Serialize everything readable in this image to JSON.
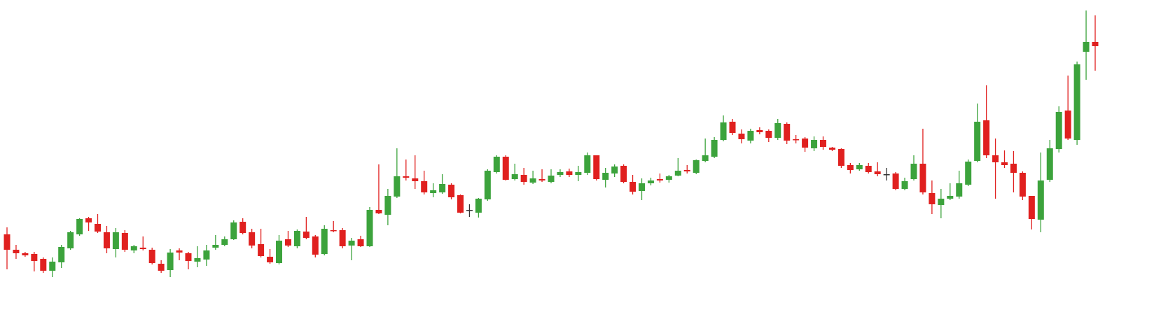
{
  "chart_data": {
    "type": "candlestick",
    "ylim": [
      0,
      476
    ],
    "up_color": "#3ca33c",
    "down_color": "#e0201f",
    "doji_color": "#333333",
    "open": [
      141,
      119,
      114,
      113,
      106,
      89,
      101,
      121,
      141,
      164,
      156,
      144,
      120,
      143,
      118,
      122,
      119,
      99,
      90,
      118,
      114,
      102,
      105,
      122,
      126,
      134,
      159,
      144,
      127,
      109,
      100,
      134,
      124,
      145,
      138,
      113,
      147,
      147,
      125,
      134,
      124,
      176,
      169,
      195,
      224,
      221,
      217,
      200,
      201,
      212,
      197,
      176,
      172,
      191,
      230,
      252,
      220,
      226,
      215,
      220,
      216,
      226,
      231,
      226,
      229,
      254,
      219,
      228,
      239,
      216,
      203,
      214,
      220,
      219,
      225,
      233,
      229,
      246,
      252,
      276,
      302,
      285,
      275,
      290,
      289,
      279,
      299,
      277,
      278,
      264,
      276,
      265,
      263,
      240,
      234,
      239,
      231,
      227,
      228,
      206,
      220,
      242,
      200,
      183,
      192,
      195,
      212,
      246,
      304,
      254,
      244,
      242,
      229,
      196,
      162,
      219,
      263,
      318,
      276,
      402,
      416
    ],
    "high": [
      151,
      126,
      116,
      116,
      108,
      108,
      126,
      146,
      164,
      166,
      170,
      153,
      150,
      147,
      126,
      138,
      122,
      104,
      120,
      121,
      116,
      124,
      126,
      140,
      138,
      161,
      164,
      149,
      149,
      120,
      140,
      146,
      148,
      166,
      140,
      154,
      160,
      150,
      136,
      139,
      180,
      241,
      206,
      264,
      248,
      254,
      232,
      214,
      227,
      214,
      198,
      184,
      193,
      234,
      254,
      254,
      242,
      236,
      232,
      234,
      234,
      234,
      235,
      239,
      258,
      254,
      236,
      241,
      241,
      226,
      221,
      222,
      228,
      226,
      250,
      240,
      248,
      278,
      280,
      311,
      306,
      291,
      292,
      294,
      291,
      306,
      301,
      283,
      280,
      281,
      281,
      266,
      264,
      243,
      243,
      243,
      244,
      236,
      230,
      222,
      254,
      292,
      218,
      206,
      214,
      232,
      248,
      328,
      354,
      278,
      261,
      260,
      231,
      196,
      258,
      276,
      324,
      368,
      388,
      461,
      454
    ],
    "low": [
      91,
      106,
      109,
      88,
      86,
      80,
      93,
      119,
      139,
      146,
      143,
      114,
      108,
      116,
      114,
      118,
      98,
      86,
      80,
      104,
      91,
      94,
      96,
      119,
      124,
      133,
      141,
      121,
      108,
      99,
      98,
      123,
      121,
      134,
      108,
      111,
      144,
      121,
      104,
      123,
      123,
      170,
      154,
      193,
      218,
      206,
      198,
      194,
      199,
      191,
      171,
      166,
      165,
      189,
      228,
      218,
      218,
      212,
      213,
      216,
      214,
      223,
      223,
      217,
      226,
      218,
      208,
      223,
      214,
      198,
      190,
      211,
      215,
      215,
      224,
      228,
      227,
      244,
      250,
      274,
      283,
      271,
      271,
      284,
      273,
      276,
      270,
      271,
      259,
      260,
      262,
      260,
      236,
      228,
      232,
      228,
      224,
      218,
      204,
      204,
      218,
      198,
      170,
      164,
      190,
      192,
      210,
      244,
      250,
      192,
      236,
      201,
      190,
      148,
      144,
      216,
      258,
      276,
      269,
      362,
      375
    ],
    "close": [
      119,
      114,
      111,
      103,
      89,
      102,
      123,
      144,
      163,
      158,
      145,
      121,
      144,
      119,
      124,
      120,
      100,
      89,
      115,
      115,
      103,
      107,
      118,
      126,
      134,
      158,
      143,
      125,
      110,
      101,
      132,
      125,
      146,
      136,
      112,
      149,
      146,
      124,
      132,
      124,
      176,
      171,
      196,
      224,
      222,
      217,
      201,
      204,
      213,
      194,
      172,
      176,
      192,
      232,
      252,
      219,
      227,
      216,
      221,
      218,
      225,
      230,
      226,
      230,
      254,
      220,
      229,
      238,
      216,
      202,
      214,
      218,
      218,
      224,
      232,
      231,
      247,
      254,
      276,
      301,
      286,
      277,
      289,
      287,
      279,
      300,
      275,
      276,
      265,
      276,
      266,
      262,
      239,
      233,
      240,
      230,
      227,
      227,
      206,
      217,
      242,
      201,
      184,
      192,
      196,
      214,
      245,
      302,
      254,
      244,
      240,
      229,
      195,
      163,
      218,
      264,
      316,
      278,
      384,
      416,
      410
    ]
  }
}
